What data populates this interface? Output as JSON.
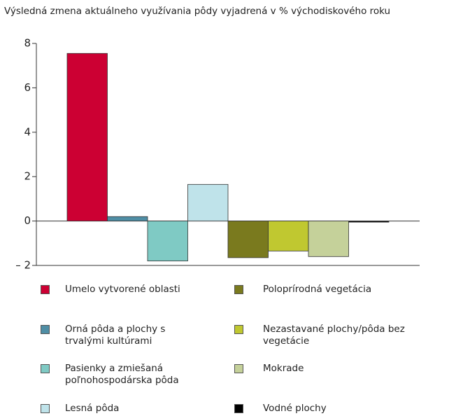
{
  "chart_data": {
    "type": "bar",
    "title": "Výsledná zmena aktuálneho využívania pôdy vyjadrená v % východiskového roku",
    "series": [
      {
        "name": "Umelo vytvorené oblasti",
        "color": "#cc0033",
        "values": [
          7.55
        ]
      },
      {
        "name": "Orná pôda a plochy s trvalými kultúrami",
        "color": "#4f8ea5",
        "values": [
          0.2
        ]
      },
      {
        "name": "Pasienky a zmiešaná poľnohospodárska pôda",
        "color": "#7fcac4",
        "values": [
          -1.8
        ]
      },
      {
        "name": "Lesná pôda",
        "color": "#bfe3ea",
        "values": [
          1.65
        ]
      },
      {
        "name": "Poloprírodná vegetácia",
        "color": "#7a7a1e",
        "values": [
          -1.65
        ]
      },
      {
        "name": "Nezastavané plochy/pôda bez vegetácie",
        "color": "#c0c830",
        "values": [
          -1.35
        ]
      },
      {
        "name": "Mokrade",
        "color": "#c5d19a",
        "values": [
          -1.6
        ]
      },
      {
        "name": "Vodné plochy",
        "color": "#000000",
        "values": [
          -0.05
        ]
      }
    ],
    "ylim": [
      -2,
      8
    ],
    "yticks": [
      {
        "value": -2,
        "label": "– 2"
      },
      0,
      2,
      4,
      6,
      8
    ],
    "grid": false
  }
}
